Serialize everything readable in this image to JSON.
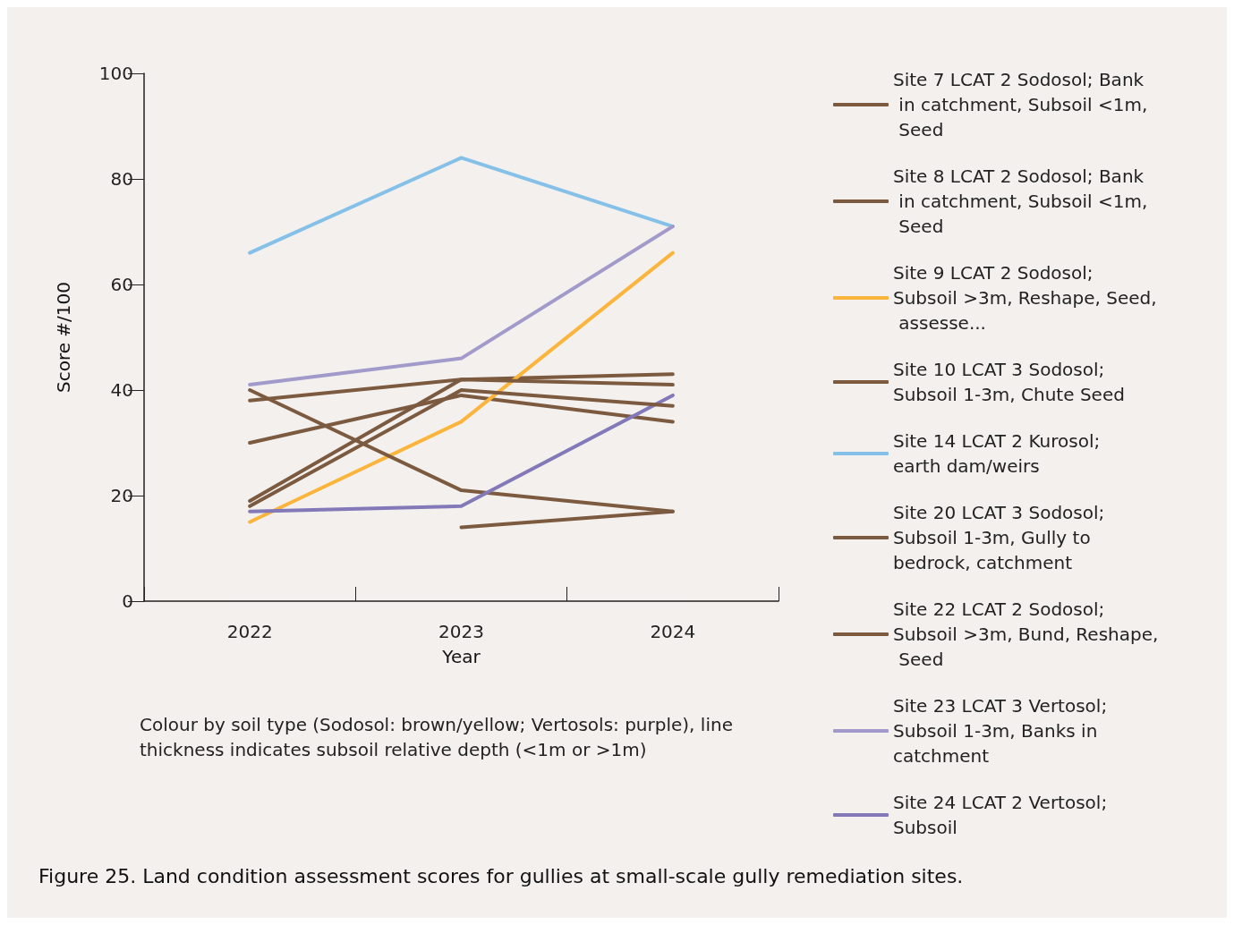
{
  "chart_data": {
    "type": "line",
    "title": "Figure 25. Land condition assessment scores for gullies at small-scale gully remediation sites.",
    "xlabel": "Year",
    "ylabel": "Score #/100",
    "annotations": [
      "Colour by soil type (Sodosol: brown/yellow; Vertosols: purple), line thickness indicates subsoil relative depth (<1m or >1m)"
    ],
    "categories": [
      "2022",
      "2023",
      "2024"
    ],
    "series": [
      {
        "name": "Site 7 LCAT 2 Sodosol; Bank in catchment, Subsoil <1m, Seed",
        "color": "#7b5a40",
        "values": [
          30,
          39,
          34
        ]
      },
      {
        "name": "Site 8 LCAT 2 Sodosol; Bank in catchment, Subsoil <1m, Seed",
        "color": "#7b5a40",
        "values": [
          19,
          42,
          43
        ]
      },
      {
        "name": "Site 9 LCAT 2 Sodosol; Subsoil >3m, Reshape, Seed, assesse...",
        "color": "#fbb53c",
        "values": [
          15,
          34,
          66
        ]
      },
      {
        "name": "Site 10 LCAT 3 Sodosol; Subsoil 1-3m, Chute Seed",
        "color": "#7b5a40",
        "values": [
          38,
          42,
          41
        ]
      },
      {
        "name": "Site 14 LCAT 2 Kurosol; earth dam/weirs",
        "color": "#85c0e8",
        "values": [
          66,
          84,
          71
        ]
      },
      {
        "name": "Site 20 LCAT 3 Sodosol; Subsoil 1-3m, Gully to bedrock, catchment",
        "color": "#7b5a40",
        "values": [
          40,
          21,
          17
        ]
      },
      {
        "name": "Site 22 LCAT 2 Sodosol; Subsoil >3m, Bund, Reshape, Seed",
        "color": "#7b5a40",
        "values": [
          null,
          14,
          17
        ]
      },
      {
        "name": "Site 23 LCAT 3 Vertosol; Subsoil 1-3m, Banks in catchment",
        "color": "#a29acb",
        "values": [
          41,
          46,
          71
        ]
      },
      {
        "name": "Site 24 LCAT 2 Vertosol; Subsoil",
        "color": "#8379b9",
        "values": [
          17,
          18,
          39
        ]
      },
      {
        "color": "#7b5a40",
        "values": [
          18,
          40,
          37
        ]
      }
    ],
    "ylim": [
      0,
      100
    ],
    "yticks": [
      0,
      20,
      40,
      60,
      80,
      100
    ],
    "grid": false,
    "legend": "right",
    "marker": "none",
    "line_style": "solid"
  }
}
